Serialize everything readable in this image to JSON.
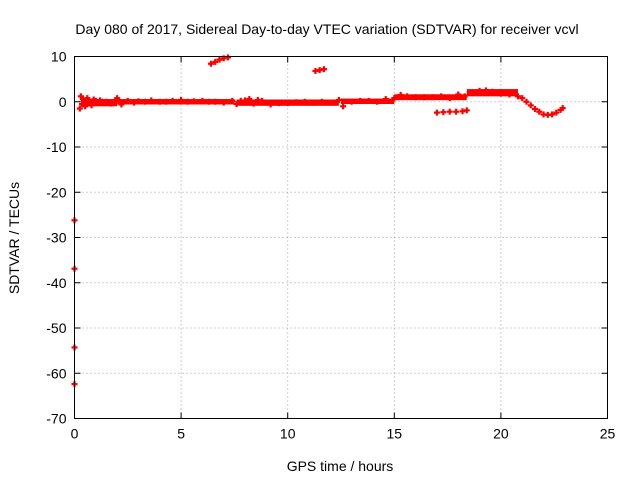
{
  "chart_data": {
    "type": "scatter",
    "title": "Day 080 of 2017, Sidereal Day-to-day VTEC variation (SDTVAR) for receiver vcvl",
    "xlabel": "GPS time / hours",
    "ylabel": "SDTVAR / TECUs",
    "xlim": [
      0,
      25
    ],
    "ylim": [
      -70,
      10
    ],
    "xticks": [
      0,
      5,
      10,
      15,
      20,
      25
    ],
    "yticks": [
      10,
      0,
      -10,
      -20,
      -30,
      -40,
      -50,
      -60,
      -70
    ],
    "grid": true,
    "grid_style": "dotted",
    "legend": "none",
    "marker_color": "#ff0000",
    "series": [
      {
        "points": [
          [
            0.0,
            -26.2
          ],
          [
            0.0,
            -36.9
          ],
          [
            0.0,
            -54.3
          ],
          [
            0.0,
            -62.4
          ],
          [
            0.25,
            -1.5
          ],
          [
            0.3,
            1.2
          ],
          [
            0.35,
            -0.5
          ],
          [
            0.4,
            0.6
          ],
          [
            0.5,
            -1.0
          ],
          [
            0.6,
            0.8
          ],
          [
            0.7,
            0.0
          ],
          [
            0.8,
            -0.8
          ],
          [
            0.9,
            0.5
          ],
          [
            1.0,
            0.2
          ],
          [
            1.1,
            -0.3
          ],
          [
            1.2,
            0.3
          ],
          [
            1.3,
            0.0
          ],
          [
            1.5,
            0.0
          ],
          [
            1.7,
            -0.4
          ],
          [
            1.9,
            0.2
          ],
          [
            2.0,
            0.8
          ],
          [
            2.2,
            -0.6
          ],
          [
            2.5,
            0.2
          ],
          [
            2.8,
            -0.2
          ],
          [
            3.0,
            0.1
          ],
          [
            3.3,
            0.0
          ],
          [
            3.6,
            0.3
          ],
          [
            4.0,
            0.0
          ],
          [
            4.3,
            0.0
          ],
          [
            4.6,
            0.2
          ],
          [
            5.0,
            0.4
          ],
          [
            5.3,
            0.0
          ],
          [
            5.6,
            0.1
          ],
          [
            6.0,
            0.2
          ],
          [
            6.3,
            0.0
          ],
          [
            6.6,
            0.0
          ],
          [
            7.0,
            -0.2
          ],
          [
            7.4,
            0.2
          ],
          [
            7.6,
            -0.5
          ],
          [
            7.8,
            0.2
          ],
          [
            8.0,
            0.3
          ],
          [
            8.2,
            0.6
          ],
          [
            8.4,
            -0.4
          ],
          [
            8.6,
            0.4
          ],
          [
            8.8,
            0.2
          ],
          [
            9.2,
            -0.6
          ],
          [
            9.6,
            -0.3
          ],
          [
            10.0,
            -0.3
          ],
          [
            10.4,
            -0.1
          ],
          [
            10.8,
            0.0
          ],
          [
            11.2,
            -0.2
          ],
          [
            11.6,
            0.0
          ],
          [
            12.4,
            0.4
          ],
          [
            12.6,
            -1.0
          ],
          [
            13.0,
            0.0
          ],
          [
            13.4,
            0.2
          ],
          [
            13.8,
            0.2
          ],
          [
            14.2,
            0.0
          ],
          [
            14.6,
            0.6
          ],
          [
            15.0,
            0.8
          ],
          [
            15.3,
            1.5
          ],
          [
            15.6,
            1.2
          ],
          [
            16.0,
            1.0
          ],
          [
            16.4,
            1.0
          ],
          [
            16.8,
            1.0
          ],
          [
            17.2,
            1.2
          ],
          [
            17.6,
            0.8
          ],
          [
            18.0,
            1.6
          ],
          [
            18.3,
            1.2
          ],
          [
            18.6,
            2.0
          ],
          [
            19.0,
            2.4
          ],
          [
            19.3,
            2.5
          ],
          [
            19.6,
            2.2
          ],
          [
            20.0,
            1.8
          ],
          [
            20.4,
            1.6
          ],
          [
            20.8,
            1.2
          ],
          [
            21.0,
            0.8
          ],
          [
            21.2,
            0.0
          ],
          [
            21.4,
            -0.8
          ],
          [
            21.6,
            -1.6
          ],
          [
            21.8,
            -2.2
          ],
          [
            22.0,
            -2.8
          ],
          [
            22.2,
            -2.9
          ],
          [
            22.4,
            -2.8
          ],
          [
            22.6,
            -2.4
          ],
          [
            22.8,
            -1.8
          ],
          [
            22.9,
            -1.4
          ],
          [
            6.4,
            8.4
          ],
          [
            6.6,
            8.8
          ],
          [
            6.8,
            9.3
          ],
          [
            7.0,
            9.6
          ],
          [
            7.2,
            9.8
          ],
          [
            11.3,
            6.8
          ],
          [
            11.5,
            7.0
          ],
          [
            11.7,
            7.2
          ],
          [
            17.0,
            -2.4
          ],
          [
            17.3,
            -2.3
          ],
          [
            17.6,
            -2.2
          ],
          [
            17.9,
            -2.2
          ],
          [
            18.2,
            -2.1
          ],
          [
            18.4,
            -1.9
          ]
        ],
        "segments": [
          [
            0.3,
            2.0,
            -0.2,
            1.6
          ],
          [
            2.0,
            7.5,
            0.0,
            1.2
          ],
          [
            7.6,
            12.4,
            -0.2,
            1.4
          ],
          [
            12.5,
            15.0,
            0.1,
            1.2
          ],
          [
            15.0,
            18.4,
            1.0,
            1.3
          ],
          [
            18.4,
            20.8,
            2.0,
            1.6
          ]
        ]
      }
    ]
  }
}
